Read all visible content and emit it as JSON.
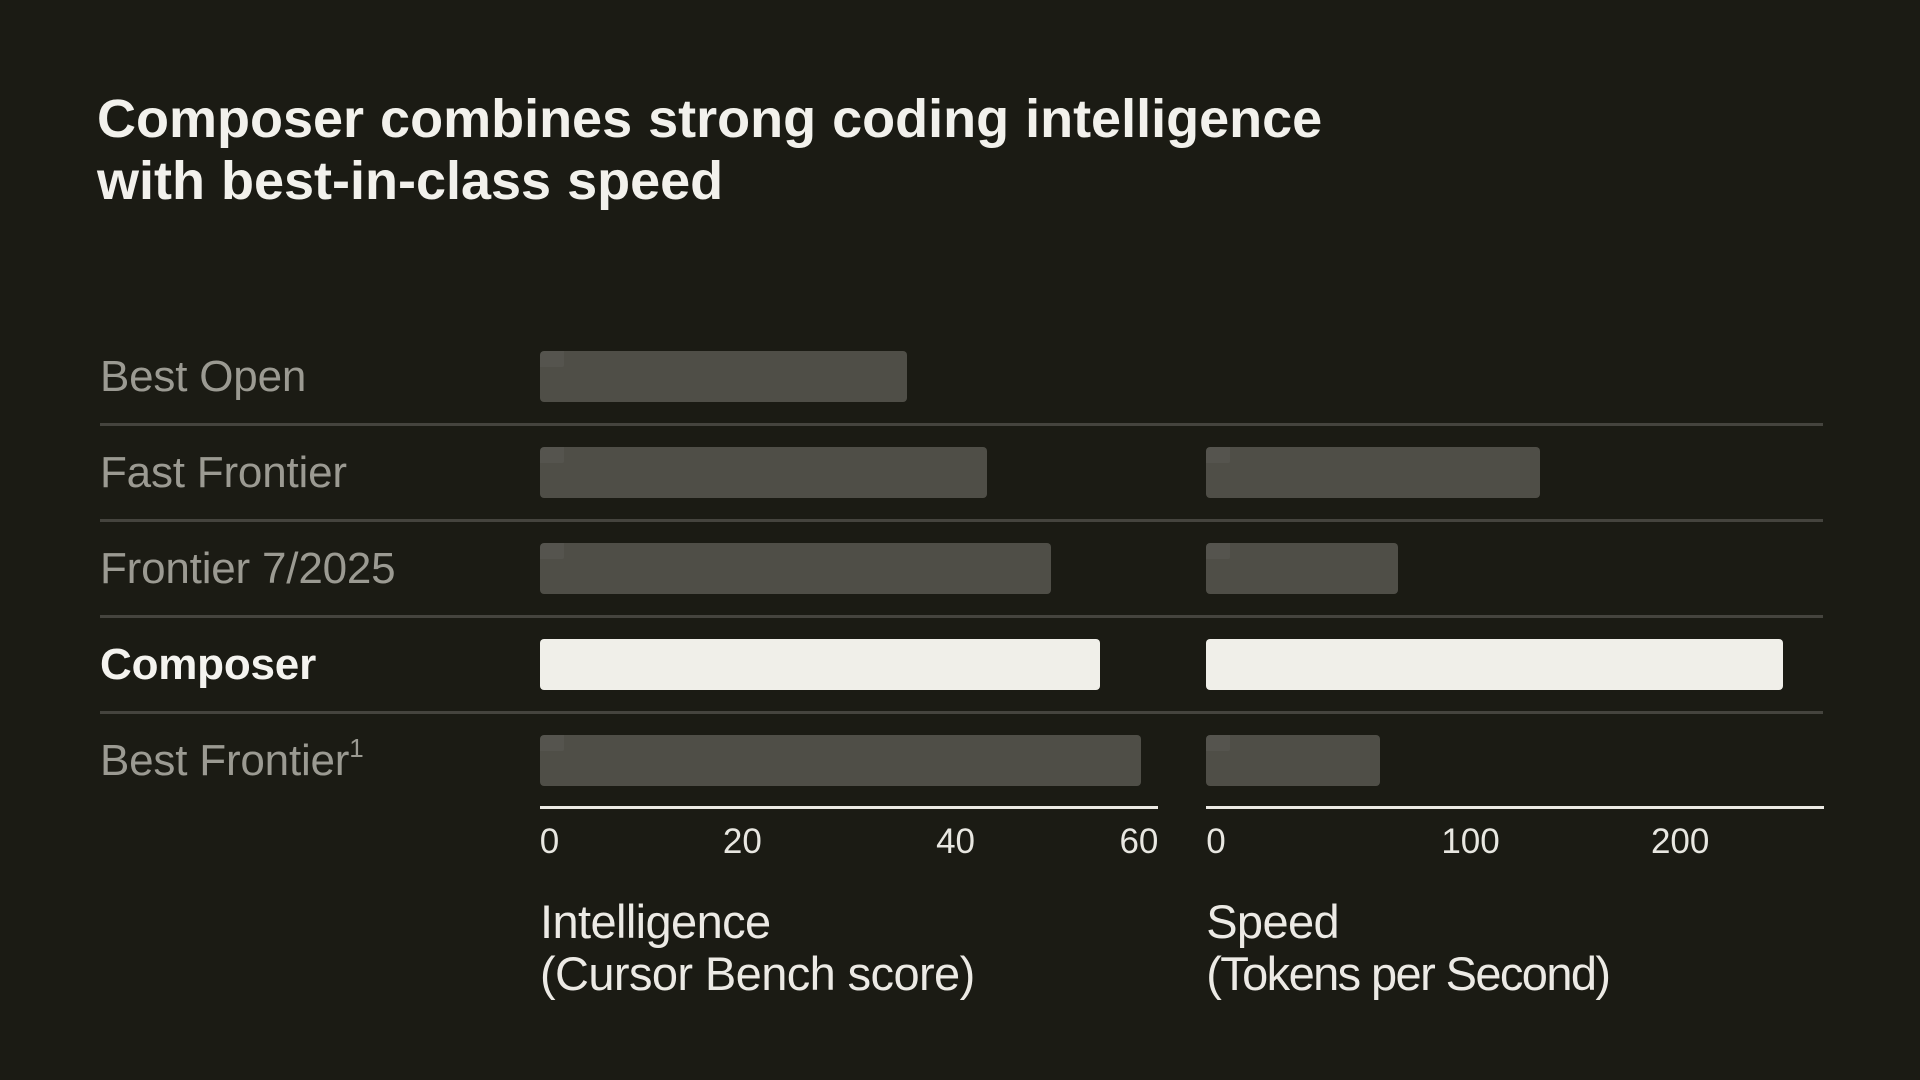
{
  "title": {
    "line1": "Composer combines strong coding intelligence",
    "line2": "with best-in-class speed"
  },
  "colors": {
    "background": "#1b1b14",
    "bar_gray": "#4f4e47",
    "bar_highlight": "#f0efe9",
    "title_text": "#f2f1ec",
    "row_label": "#9b9a92",
    "row_label_highlight": "#f4f3ef",
    "separator": "#45443e",
    "axis_line": "#eceae4",
    "tick_label": "#e8e7e1",
    "caption_text": "#eceae5"
  },
  "chart_data": {
    "type": "bar",
    "orientation": "horizontal",
    "categories": [
      "Best Open",
      "Fast Frontier",
      "Frontier 7/2025",
      "Composer",
      "Best Frontier"
    ],
    "footnote_marker_on": "Best Frontier",
    "highlighted_category": "Composer",
    "series": [
      {
        "name": "Intelligence (Cursor Bench score)",
        "values": [
          35.6,
          43.4,
          49.6,
          54.3,
          58.3
        ],
        "xlim": [
          0,
          60
        ],
        "ticks": [
          {
            "label": "0",
            "pos_pct": 0,
            "align": "left"
          },
          {
            "label": "20",
            "pos_pct": 32.74,
            "align": "center"
          },
          {
            "label": "40",
            "pos_pct": 67.21,
            "align": "center"
          },
          {
            "label": "60",
            "pos_pct": 100,
            "align": "right"
          }
        ],
        "bar_width_pct": [
          59.3,
          72.32,
          82.61,
          90.5,
          97.19
        ],
        "caption_line1": "Intelligence",
        "caption_line2": "(Cursor Bench score)"
      },
      {
        "name": "Speed (Tokens per Second)",
        "values": [
          null,
          133,
          66,
          249,
          57
        ],
        "xlim": [
          0,
          250
        ],
        "ticks": [
          {
            "label": "0",
            "pos_pct": 0,
            "align": "left"
          },
          {
            "label": "100",
            "pos_pct": 42.8,
            "align": "center"
          },
          {
            "label": "200",
            "pos_pct": 76.74,
            "align": "center"
          }
        ],
        "bar_width_pct": [
          null,
          54.13,
          31.09,
          93.44,
          28.09
        ],
        "caption_line1": "Speed",
        "caption_line2": "(Tokens per Second)"
      }
    ],
    "title": "Composer combines strong coding intelligence with best-in-class speed",
    "grid": "row-separators",
    "legend": "none"
  }
}
